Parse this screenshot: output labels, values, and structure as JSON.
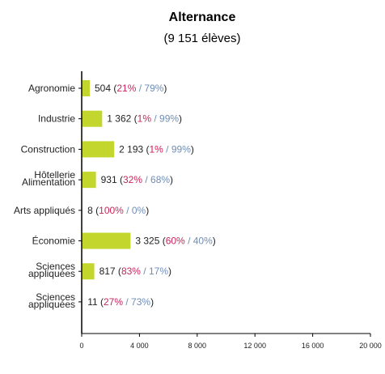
{
  "chart_data": {
    "type": "bar",
    "orientation": "horizontal",
    "title": "Alternance",
    "subtitle": "(9 151 élèves)",
    "categories": [
      [
        "Agronomie"
      ],
      [
        "Industrie"
      ],
      [
        "Construction"
      ],
      [
        "Hôtellerie",
        "Alimentation"
      ],
      [
        "Arts appliqués"
      ],
      [
        "Économie"
      ],
      [
        "Sciences",
        "appliquées"
      ],
      [
        "Sciences",
        "appliquées"
      ]
    ],
    "values": [
      504,
      1362,
      2193,
      931,
      8,
      3325,
      817,
      11
    ],
    "value_labels": [
      "504",
      "1 362",
      "2 193",
      "931",
      "8",
      "3 325",
      "817",
      "11"
    ],
    "share_a": [
      "21%",
      "1%",
      "1%",
      "32%",
      "100%",
      "60%",
      "83%",
      "27%"
    ],
    "share_b": [
      "79%",
      "99%",
      "99%",
      "68%",
      "0%",
      "40%",
      "17%",
      "73%"
    ],
    "xlim": [
      0,
      20000
    ],
    "xticks": [
      0,
      4000,
      8000,
      12000,
      16000,
      20000
    ],
    "xtick_labels": [
      "0",
      "4 000",
      "8 000",
      "12 000",
      "16 000",
      "20 000"
    ],
    "grid": false,
    "colors": {
      "bar": "#c2d62e",
      "share_a": "#c8265a",
      "share_b": "#6f8db5",
      "axis": "#000000",
      "text": "#222222"
    }
  }
}
